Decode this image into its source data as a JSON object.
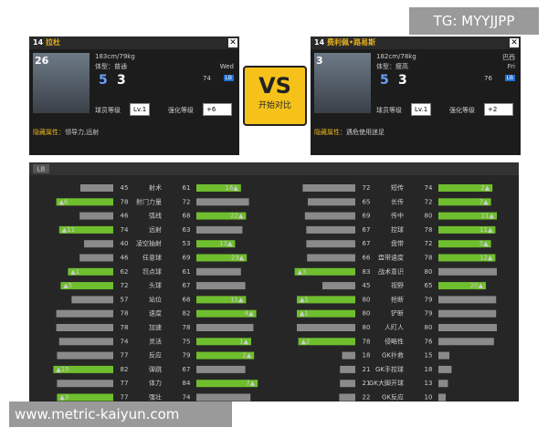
{
  "watermark": "TG: MYYJJPP",
  "footer_url": "www.metric-kaiyun.com",
  "players": [
    {
      "number": 14,
      "name": "拉杜",
      "rating": 26,
      "height_weight": "183cm/79kg",
      "body": "体型：普通",
      "foot": "Wed",
      "ovr": 74,
      "pos": "LB",
      "skill1": 5,
      "skill2": 3,
      "level_label": "球员等级",
      "level": "Lv.1",
      "enhance_label": "强化等级",
      "enhance": "+6",
      "hidden_label": "隐藏属性：",
      "hidden": "领导力,远射"
    },
    {
      "number": 14,
      "name": "费利佩•路易斯",
      "rating": 3,
      "height_weight": "182cm/78kg",
      "body": "体型：瘦高",
      "region": "巴西",
      "foot": "Fri",
      "ovr": 76,
      "pos": "LB",
      "skill1": 5,
      "skill2": 3,
      "level_label": "球员等级",
      "level": "Lv.1",
      "enhance_label": "强化等级",
      "enhance": "+2",
      "hidden_label": "隐藏属性：",
      "hidden": "遇危使用迷足"
    }
  ],
  "vs": {
    "label": "VS",
    "button": "开始对比"
  },
  "position_tab": "LB",
  "stats": {
    "left": [
      {
        "name": "射术",
        "a": 45,
        "b": 61,
        "b_lead": "16▲"
      },
      {
        "name": "射门力量",
        "a": 78,
        "b": 72,
        "a_lead": "▲6"
      },
      {
        "name": "弧线",
        "a": 46,
        "b": 68,
        "b_lead": "22▲"
      },
      {
        "name": "远射",
        "a": 74,
        "b": 63,
        "a_lead": "▲11"
      },
      {
        "name": "凌空抽射",
        "a": 40,
        "b": 53,
        "b_lead": "13▲"
      },
      {
        "name": "任意球",
        "a": 46,
        "b": 69,
        "b_lead": "23▲"
      },
      {
        "name": "罚点球",
        "a": 62,
        "b": 61,
        "a_lead": "▲1"
      },
      {
        "name": "头球",
        "a": 72,
        "b": 67,
        "a_lead": "▲5"
      },
      {
        "name": "站位",
        "a": 57,
        "b": 68,
        "b_lead": "11▲"
      },
      {
        "name": "速度",
        "a": 78,
        "b": 82,
        "b_lead": "4▲"
      },
      {
        "name": "加速",
        "a": 78,
        "b": 78
      },
      {
        "name": "灵活",
        "a": 74,
        "b": 75,
        "b_lead": "1▲"
      },
      {
        "name": "反应",
        "a": 77,
        "b": 79,
        "b_lead": "2▲"
      },
      {
        "name": "弹跳",
        "a": 82,
        "b": 67,
        "a_lead": "▲15"
      },
      {
        "name": "体力",
        "a": 77,
        "b": 84,
        "b_lead": "7▲"
      },
      {
        "name": "强壮",
        "a": 77,
        "b": 74,
        "a_lead": "▲3"
      }
    ],
    "right": [
      {
        "name": "短传",
        "a": 72,
        "b": 74,
        "b_lead": "2▲"
      },
      {
        "name": "长传",
        "a": 65,
        "b": 72,
        "b_lead": "7▲"
      },
      {
        "name": "传中",
        "a": 69,
        "b": 80,
        "b_lead": "11▲"
      },
      {
        "name": "控球",
        "a": 67,
        "b": 78,
        "b_lead": "11▲"
      },
      {
        "name": "盘带",
        "a": 67,
        "b": 72,
        "b_lead": "5▲"
      },
      {
        "name": "盘带速度",
        "a": 66,
        "b": 78,
        "b_lead": "12▲"
      },
      {
        "name": "战术意识",
        "a": 83,
        "b": 80,
        "a_lead": "▲3"
      },
      {
        "name": "视野",
        "a": 45,
        "b": 65,
        "b_lead": "20▲"
      },
      {
        "name": "抢断",
        "a": 80,
        "b": 79,
        "a_lead": "▲1"
      },
      {
        "name": "铲断",
        "a": 80,
        "b": 79,
        "a_lead": "▲1"
      },
      {
        "name": "人盯人",
        "a": 80,
        "b": 80
      },
      {
        "name": "侵略性",
        "a": 78,
        "b": 76,
        "a_lead": "▲2"
      },
      {
        "name": "GK扑救",
        "a": 18,
        "b": 15
      },
      {
        "name": "GK手控球",
        "a": 21,
        "b": 18
      },
      {
        "name": "GK大脚开球",
        "a": 21,
        "b": 13
      },
      {
        "name": "GK反应",
        "a": 22,
        "b": 10
      }
    ]
  }
}
